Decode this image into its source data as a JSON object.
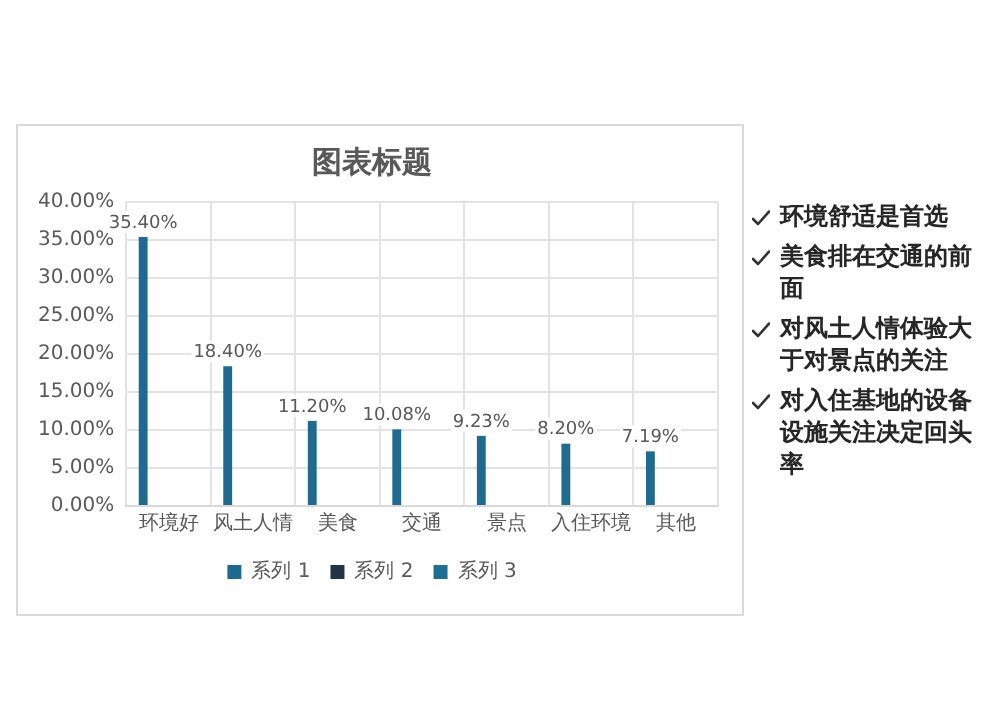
{
  "chart_data": {
    "type": "bar",
    "title": "图表标题",
    "categories": [
      "环境好",
      "风土人情",
      "美食",
      "交通",
      "景点",
      "入住环境",
      "其他"
    ],
    "series": [
      {
        "name": "系列 1",
        "color": "#1f6a8f",
        "values": [
          35.4,
          18.4,
          11.2,
          10.08,
          9.23,
          8.2,
          7.19
        ],
        "value_labels": [
          "35.40%",
          "18.40%",
          "11.20%",
          "10.08%",
          "9.23%",
          "8.20%",
          "7.19%"
        ]
      },
      {
        "name": "系列 2",
        "color": "#243447",
        "values": [
          null,
          null,
          null,
          null,
          null,
          null,
          null
        ]
      },
      {
        "name": "系列 3",
        "color": "#1d6f96",
        "values": [
          null,
          null,
          null,
          null,
          null,
          null,
          null
        ]
      }
    ],
    "ylim": [
      0,
      40
    ],
    "yticks": [
      {
        "value": 0,
        "label": "0.00%"
      },
      {
        "value": 5,
        "label": "5.00%"
      },
      {
        "value": 10,
        "label": "10.00%"
      },
      {
        "value": 15,
        "label": "15.00%"
      },
      {
        "value": 20,
        "label": "20.00%"
      },
      {
        "value": 25,
        "label": "25.00%"
      },
      {
        "value": 30,
        "label": "30.00%"
      },
      {
        "value": 35,
        "label": "35.00%"
      },
      {
        "value": 40,
        "label": "40.00%"
      }
    ],
    "grid": true,
    "legend": "bottom",
    "annotations": [
      "环境舒适是首选",
      "美食排在交通的前面",
      "对风土人情体验大于对景点的关注",
      "对入住基地的设备设施关注决定回头率"
    ]
  }
}
